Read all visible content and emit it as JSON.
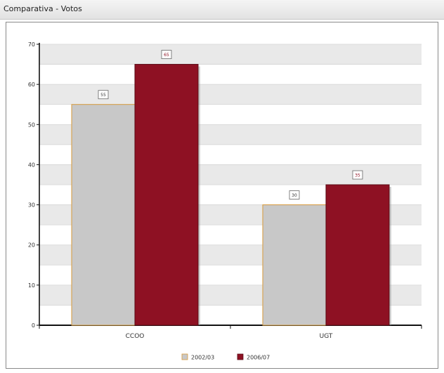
{
  "window": {
    "title": "Comparativa - Votos"
  },
  "chart_data": {
    "type": "bar",
    "categories": [
      "CCOO",
      "UGT"
    ],
    "series": [
      {
        "name": "2002/03",
        "values": [
          55,
          30
        ],
        "color": "#c8c8c8",
        "border": "#d89a3a",
        "label_color": "#333333"
      },
      {
        "name": "2006/07",
        "values": [
          65,
          35
        ],
        "color": "#8e1123",
        "border": "#5a0a14",
        "label_color": "#8e1123"
      }
    ],
    "data_labels": [
      [
        "55",
        "65"
      ],
      [
        "30",
        "35"
      ]
    ],
    "ylim": [
      0,
      70
    ],
    "yticks": [
      0,
      10,
      20,
      30,
      40,
      50,
      60,
      70
    ],
    "ytick_labels": [
      "0",
      "10",
      "20",
      "30",
      "40",
      "50",
      "60",
      "70"
    ],
    "grid": true,
    "grid_bands": [
      "#ffffff",
      "#e9e9e9"
    ],
    "legend": {
      "position": "bottom-center"
    },
    "xlabel": "",
    "ylabel": ""
  }
}
